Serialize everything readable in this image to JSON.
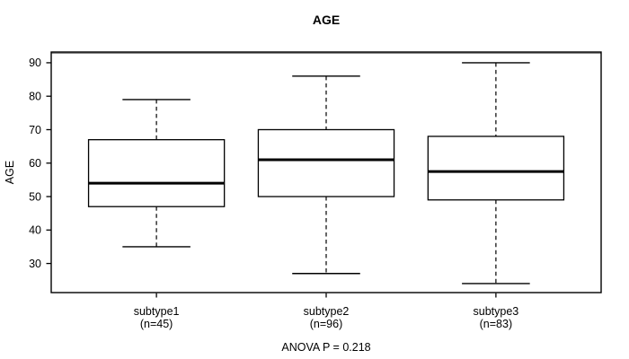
{
  "chart_data": {
    "type": "boxplot",
    "title": "AGE",
    "ylabel": "AGE",
    "footnote": "ANOVA P = 0.218",
    "anova_p": 0.218,
    "y_axis": {
      "ticks": [
        30,
        40,
        50,
        60,
        70,
        80,
        90
      ],
      "ylim": [
        21.3,
        93.2
      ],
      "grid": false
    },
    "groups": [
      {
        "label": "subtype1",
        "n_label": "(n=45)",
        "n": 45,
        "min": 35,
        "q1": 47,
        "median": 54,
        "q3": 67,
        "max": 79
      },
      {
        "label": "subtype2",
        "n_label": "(n=96)",
        "n": 96,
        "min": 27,
        "q1": 50,
        "median": 61,
        "q3": 70,
        "max": 86
      },
      {
        "label": "subtype3",
        "n_label": "(n=83)",
        "n": 83,
        "min": 24,
        "q1": 49,
        "median": 57.5,
        "q3": 68,
        "max": 90
      }
    ],
    "colors": {
      "box_border": "#000000",
      "box_fill": "#ffffff",
      "median": "#000000",
      "whisker": "#000000",
      "frame": "#000000",
      "frame_top_shadow": "#8f8f8f",
      "text": "#000000",
      "background": "#ffffff"
    },
    "legend": null
  }
}
